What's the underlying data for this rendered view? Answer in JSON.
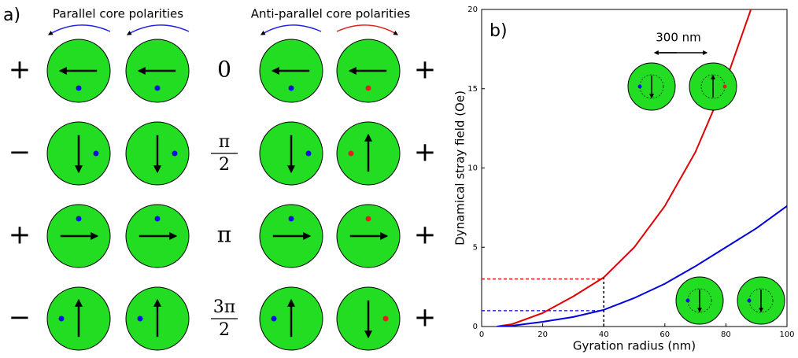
{
  "panel_a": {
    "label": "a)",
    "parallel_title": "Parallel core polarities",
    "antiparallel_title": "Anti-parallel core polarities",
    "left_signs": [
      "+",
      "−",
      "+",
      "−"
    ],
    "right_signs": [
      "+",
      "+",
      "+",
      "+"
    ],
    "phases": [
      {
        "numerator": "0"
      },
      {
        "numerator": "π",
        "denominator": "2"
      },
      {
        "numerator": "π"
      },
      {
        "numerator": "3π",
        "denominator": "2"
      }
    ]
  },
  "chart_data": {
    "type": "line",
    "panel_label": "b)",
    "inset_label": "300 nm",
    "x_label": "Gyration radius (nm)",
    "y_label": "Dynamical stray field (Oe)",
    "xlim": [
      0,
      100
    ],
    "ylim": [
      0,
      20
    ],
    "xticks": [
      0,
      20,
      40,
      60,
      80,
      100
    ],
    "yticks": [
      0,
      5,
      10,
      15,
      20
    ],
    "x": [
      5,
      10,
      20,
      30,
      40,
      50,
      60,
      70,
      80,
      90,
      100
    ],
    "series": [
      {
        "color": "#e00000",
        "values": [
          0,
          0.15,
          0.85,
          1.9,
          3.1,
          5.0,
          7.6,
          11,
          15.5,
          21,
          null
        ]
      },
      {
        "color": "#0000e0",
        "values": [
          0,
          0.05,
          0.3,
          0.6,
          1.05,
          1.8,
          2.7,
          3.8,
          5.0,
          6.2,
          7.6
        ]
      }
    ],
    "reference_lines": [
      {
        "y": 3.0,
        "x_end": 40,
        "color": "#e00000"
      },
      {
        "y": 1.0,
        "x_end": 40,
        "color": "#0000e0"
      },
      {
        "x": 40,
        "y_end": 3.1,
        "color": "#000000"
      }
    ]
  }
}
